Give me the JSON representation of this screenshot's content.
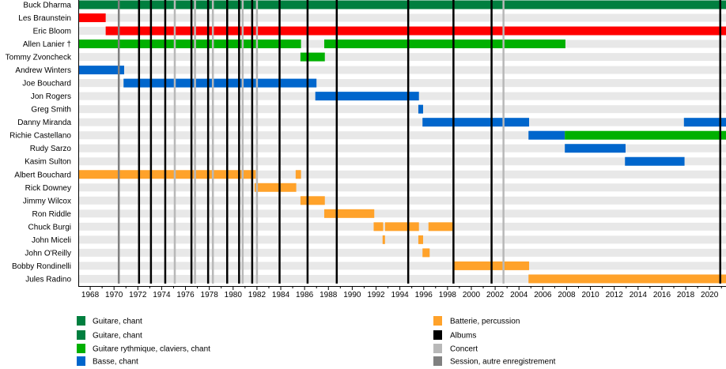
{
  "chart_data": {
    "type": "timeline",
    "title": "",
    "xlim": [
      1967,
      2021.4
    ],
    "x_ticks": [
      1968,
      1970,
      1972,
      1974,
      1976,
      1978,
      1980,
      1982,
      1984,
      1986,
      1988,
      1990,
      1992,
      1994,
      1996,
      1998,
      2000,
      2002,
      2004,
      2006,
      2008,
      2010,
      2012,
      2014,
      2016,
      2018,
      2020
    ],
    "colors": {
      "guitar_vocals": "#007f3f",
      "vocals_red": "#ff0000",
      "rhythm_keys": "#00b000",
      "bass": "#0066cc",
      "drums": "#ffa22a",
      "albums": "#000000",
      "concert": "#b8b8b8",
      "session": "#808080",
      "row_band": "#e8e8e8"
    },
    "members": [
      {
        "name": "Buck Dharma",
        "bars": [
          {
            "start": 1967,
            "end": 2021.4,
            "role": "guitar_vocals"
          }
        ]
      },
      {
        "name": "Les Braunstein",
        "bars": [
          {
            "start": 1967,
            "end": 1969.3,
            "role": "vocals_red"
          }
        ]
      },
      {
        "name": "Eric Bloom",
        "bars": [
          {
            "start": 1969.3,
            "end": 2021.4,
            "role": "vocals_red"
          }
        ]
      },
      {
        "name": "Allen Lanier †",
        "bars": [
          {
            "start": 1967,
            "end": 1985.7,
            "role": "rhythm_keys"
          },
          {
            "start": 1987.65,
            "end": 2007.9,
            "role": "rhythm_keys"
          }
        ]
      },
      {
        "name": "Tommy Zvoncheck",
        "bars": [
          {
            "start": 1985.65,
            "end": 1987.7,
            "role": "rhythm_keys"
          }
        ]
      },
      {
        "name": "Andrew Winters",
        "bars": [
          {
            "start": 1967,
            "end": 1970.85,
            "role": "bass"
          }
        ]
      },
      {
        "name": "Joe Bouchard",
        "bars": [
          {
            "start": 1970.8,
            "end": 1987.0,
            "role": "bass"
          }
        ]
      },
      {
        "name": "Jon Rogers",
        "bars": [
          {
            "start": 1986.9,
            "end": 1995.6,
            "role": "bass"
          }
        ]
      },
      {
        "name": "Greg Smith",
        "bars": [
          {
            "start": 1995.55,
            "end": 1995.95,
            "role": "bass"
          }
        ]
      },
      {
        "name": "Danny Miranda",
        "bars": [
          {
            "start": 1995.9,
            "end": 2004.85,
            "role": "bass"
          },
          {
            "start": 2017.85,
            "end": 2021.4,
            "role": "bass"
          }
        ]
      },
      {
        "name": "Richie Castellano",
        "bars": [
          {
            "start": 2004.8,
            "end": 2007.85,
            "role": "bass"
          },
          {
            "start": 2007.85,
            "end": 2021.4,
            "role": "rhythm_keys"
          }
        ]
      },
      {
        "name": "Rudy Sarzo",
        "bars": [
          {
            "start": 2007.85,
            "end": 2012.95,
            "role": "bass"
          }
        ]
      },
      {
        "name": "Kasim Sulton",
        "bars": [
          {
            "start": 2012.9,
            "end": 2017.9,
            "role": "bass"
          }
        ]
      },
      {
        "name": "Albert Bouchard",
        "bars": [
          {
            "start": 1967,
            "end": 1981.9,
            "role": "drums"
          },
          {
            "start": 1985.25,
            "end": 1985.7,
            "role": "drums"
          }
        ]
      },
      {
        "name": "Rick Downey",
        "bars": [
          {
            "start": 1981.8,
            "end": 1985.3,
            "role": "drums"
          }
        ]
      },
      {
        "name": "Jimmy Wilcox",
        "bars": [
          {
            "start": 1985.65,
            "end": 1987.7,
            "role": "drums"
          }
        ]
      },
      {
        "name": "Ron Riddle",
        "bars": [
          {
            "start": 1987.65,
            "end": 1991.85,
            "role": "drums"
          }
        ]
      },
      {
        "name": "Chuck Burgi",
        "bars": [
          {
            "start": 1991.8,
            "end": 1992.6,
            "role": "drums"
          },
          {
            "start": 1992.75,
            "end": 1995.6,
            "role": "drums"
          },
          {
            "start": 1996.4,
            "end": 1998.55,
            "role": "drums"
          }
        ]
      },
      {
        "name": "John Miceli",
        "bars": [
          {
            "start": 1992.55,
            "end": 1992.75,
            "role": "drums"
          },
          {
            "start": 1995.55,
            "end": 1995.95,
            "role": "drums"
          }
        ]
      },
      {
        "name": "John O'Reilly",
        "bars": [
          {
            "start": 1995.9,
            "end": 1996.5,
            "role": "drums"
          }
        ]
      },
      {
        "name": "Bobby Rondinelli",
        "bars": [
          {
            "start": 1998.5,
            "end": 2004.85,
            "role": "drums"
          }
        ]
      },
      {
        "name": "Jules Radino",
        "bars": [
          {
            "start": 2004.8,
            "end": 2021.4,
            "role": "drums"
          }
        ]
      }
    ],
    "events": {
      "albums": [
        1972.1,
        1973.1,
        1974.3,
        1976.5,
        1977.9,
        1979.5,
        1980.5,
        1981.6,
        1983.9,
        1986.25,
        1988.7,
        1994.7,
        1998.5,
        2001.7,
        2020.9
      ],
      "concert": [
        1975.1,
        1976.8,
        1978.3,
        1980.8,
        1982.0,
        2002.7
      ],
      "session": [
        1970.4
      ]
    },
    "legend": {
      "left": [
        {
          "label": "Guitare, chant",
          "role": "guitar_vocals"
        },
        {
          "label": "Guitare, chant",
          "role": "guitar_vocals"
        },
        {
          "label": "Guitare rythmique, claviers, chant",
          "role": "rhythm_keys"
        },
        {
          "label": "Basse, chant",
          "role": "bass"
        }
      ],
      "right": [
        {
          "label": "Batterie, percussion",
          "role": "drums"
        },
        {
          "label": "Albums",
          "role": "albums"
        },
        {
          "label": "Concert",
          "role": "concert"
        },
        {
          "label": "Session, autre enregistrement",
          "role": "session"
        }
      ]
    }
  }
}
